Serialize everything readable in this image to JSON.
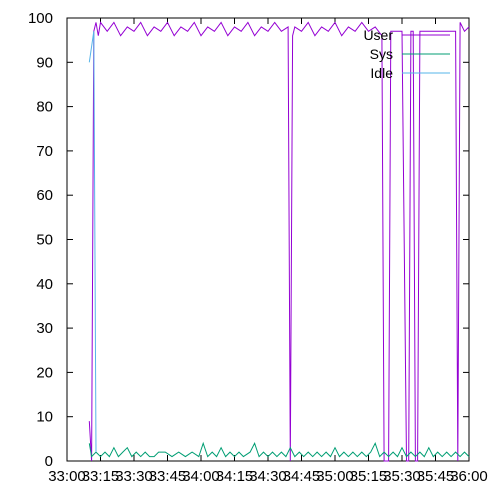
{
  "chart_data": {
    "type": "line",
    "title": "",
    "xlabel": "",
    "ylabel": "",
    "xlim": [
      "33:00",
      "36:00"
    ],
    "ylim": [
      0,
      100
    ],
    "grid": false,
    "legend_position": "top-right",
    "x_ticks": [
      "33:00",
      "33:15",
      "33:30",
      "33:45",
      "34:00",
      "34:15",
      "34:30",
      "34:45",
      "35:00",
      "35:15",
      "35:30",
      "35:45",
      "36:00"
    ],
    "y_ticks": [
      "0",
      "10",
      "20",
      "30",
      "40",
      "50",
      "60",
      "70",
      "80",
      "90",
      "100"
    ],
    "colors": {
      "User": "#9400d3",
      "Sys": "#009e73",
      "Idle": "#56b4e9"
    },
    "series": [
      {
        "name": "User",
        "points": [
          [
            "33:10",
            9
          ],
          [
            "33:11",
            0
          ],
          [
            "33:12",
            97
          ],
          [
            "33:13",
            99
          ],
          [
            "33:14",
            96
          ],
          [
            "33:15",
            99
          ],
          [
            "33:18",
            97
          ],
          [
            "33:21",
            99
          ],
          [
            "33:24",
            96
          ],
          [
            "33:27",
            98
          ],
          [
            "33:30",
            97
          ],
          [
            "33:33",
            99
          ],
          [
            "33:36",
            96
          ],
          [
            "33:39",
            98
          ],
          [
            "33:42",
            97
          ],
          [
            "33:45",
            99
          ],
          [
            "33:48",
            96
          ],
          [
            "33:51",
            98
          ],
          [
            "33:54",
            97
          ],
          [
            "33:57",
            99
          ],
          [
            "34:00",
            96
          ],
          [
            "34:03",
            98
          ],
          [
            "34:06",
            97
          ],
          [
            "34:09",
            99
          ],
          [
            "34:12",
            96
          ],
          [
            "34:15",
            98
          ],
          [
            "34:18",
            97
          ],
          [
            "34:21",
            99
          ],
          [
            "34:24",
            96
          ],
          [
            "34:27",
            98
          ],
          [
            "34:30",
            97
          ],
          [
            "34:33",
            99
          ],
          [
            "34:36",
            97
          ],
          [
            "34:39",
            98
          ],
          [
            "34:40",
            0
          ],
          [
            "34:41",
            96
          ],
          [
            "34:42",
            98
          ],
          [
            "34:45",
            97
          ],
          [
            "34:48",
            99
          ],
          [
            "34:51",
            96
          ],
          [
            "34:54",
            98
          ],
          [
            "34:57",
            97
          ],
          [
            "35:00",
            99
          ],
          [
            "35:03",
            96
          ],
          [
            "35:06",
            98
          ],
          [
            "35:09",
            97
          ],
          [
            "35:12",
            99
          ],
          [
            "35:15",
            97
          ],
          [
            "35:18",
            98
          ],
          [
            "35:21",
            96
          ],
          [
            "35:22",
            0
          ],
          [
            "35:24",
            0
          ],
          [
            "35:25",
            97
          ],
          [
            "35:28",
            97
          ],
          [
            "35:30",
            97
          ],
          [
            "35:32",
            0
          ],
          [
            "35:33",
            0
          ],
          [
            "35:34",
            97
          ],
          [
            "35:35",
            97
          ],
          [
            "35:36",
            0
          ],
          [
            "35:37",
            0
          ],
          [
            "35:38",
            97
          ],
          [
            "35:42",
            97
          ],
          [
            "35:46",
            97
          ],
          [
            "35:50",
            97
          ],
          [
            "35:54",
            97
          ],
          [
            "35:55",
            0
          ],
          [
            "35:56",
            99
          ],
          [
            "35:58",
            97
          ],
          [
            "36:00",
            98
          ]
        ]
      },
      {
        "name": "Sys",
        "points": [
          [
            "33:10",
            4
          ],
          [
            "33:11",
            1
          ],
          [
            "33:13",
            2
          ],
          [
            "33:15",
            1
          ],
          [
            "33:17",
            2
          ],
          [
            "33:19",
            1
          ],
          [
            "33:21",
            3
          ],
          [
            "33:23",
            1
          ],
          [
            "33:25",
            2
          ],
          [
            "33:27",
            3
          ],
          [
            "33:29",
            1
          ],
          [
            "33:31",
            2
          ],
          [
            "33:33",
            1
          ],
          [
            "33:35",
            2
          ],
          [
            "33:37",
            1
          ],
          [
            "33:39",
            1
          ],
          [
            "33:41",
            2
          ],
          [
            "33:44",
            2
          ],
          [
            "33:47",
            1
          ],
          [
            "33:50",
            2
          ],
          [
            "33:53",
            1
          ],
          [
            "33:56",
            2
          ],
          [
            "33:59",
            1
          ],
          [
            "34:01",
            4
          ],
          [
            "34:03",
            1
          ],
          [
            "34:05",
            2
          ],
          [
            "34:07",
            1
          ],
          [
            "34:09",
            3
          ],
          [
            "34:11",
            1
          ],
          [
            "34:13",
            2
          ],
          [
            "34:15",
            1
          ],
          [
            "34:17",
            2
          ],
          [
            "34:19",
            1
          ],
          [
            "34:22",
            2
          ],
          [
            "34:24",
            4
          ],
          [
            "34:26",
            1
          ],
          [
            "34:28",
            2
          ],
          [
            "34:30",
            1
          ],
          [
            "34:32",
            2
          ],
          [
            "34:34",
            1
          ],
          [
            "34:36",
            2
          ],
          [
            "34:38",
            1
          ],
          [
            "34:40",
            3
          ],
          [
            "34:42",
            1
          ],
          [
            "34:44",
            2
          ],
          [
            "34:46",
            1
          ],
          [
            "34:48",
            2
          ],
          [
            "34:50",
            1
          ],
          [
            "34:52",
            2
          ],
          [
            "34:54",
            1
          ],
          [
            "34:56",
            2
          ],
          [
            "34:58",
            1
          ],
          [
            "35:00",
            3
          ],
          [
            "35:02",
            1
          ],
          [
            "35:04",
            2
          ],
          [
            "35:06",
            1
          ],
          [
            "35:08",
            2
          ],
          [
            "35:10",
            1
          ],
          [
            "35:12",
            2
          ],
          [
            "35:14",
            1
          ],
          [
            "35:16",
            2
          ],
          [
            "35:18",
            4
          ],
          [
            "35:20",
            1
          ],
          [
            "35:22",
            2
          ],
          [
            "35:24",
            1
          ],
          [
            "35:26",
            2
          ],
          [
            "35:28",
            1
          ],
          [
            "35:30",
            3
          ],
          [
            "35:32",
            1
          ],
          [
            "35:34",
            2
          ],
          [
            "35:36",
            1
          ],
          [
            "35:38",
            2
          ],
          [
            "35:40",
            1
          ],
          [
            "35:42",
            3
          ],
          [
            "35:44",
            1
          ],
          [
            "35:46",
            2
          ],
          [
            "35:48",
            1
          ],
          [
            "35:50",
            2
          ],
          [
            "35:52",
            1
          ],
          [
            "35:54",
            2
          ],
          [
            "35:56",
            1
          ],
          [
            "35:58",
            2
          ],
          [
            "36:00",
            1
          ]
        ]
      },
      {
        "name": "Idle",
        "points": [
          [
            "33:10",
            90
          ],
          [
            "33:12",
            97
          ],
          [
            "33:13",
            2
          ]
        ]
      }
    ]
  }
}
